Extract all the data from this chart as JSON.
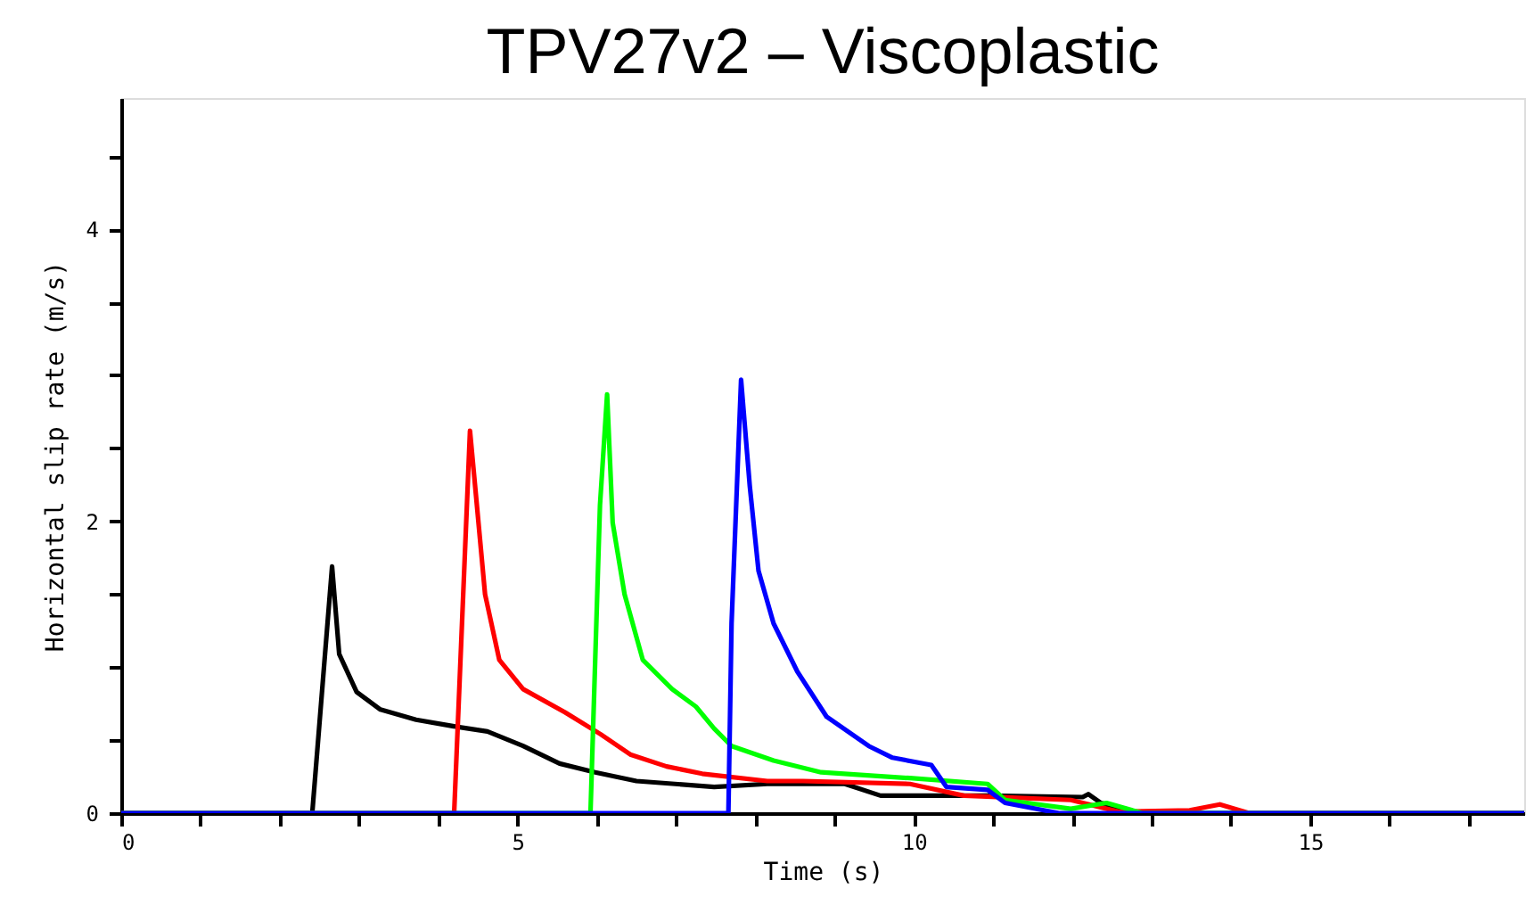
{
  "chart_data": {
    "type": "line",
    "title": "TPV27v2 – Viscoplastic",
    "xlabel": "Time (s)",
    "ylabel": "Horizontal slip rate (m/s)",
    "xlim": [
      0,
      17.7
    ],
    "ylim": [
      0,
      4.9
    ],
    "xticks": [
      0,
      {
        "value": 1,
        "label": null
      },
      {
        "value": 2,
        "label": null
      },
      {
        "value": 3,
        "label": null
      },
      {
        "value": 4,
        "label": null
      },
      5,
      {
        "value": 6,
        "label": null
      },
      {
        "value": 7,
        "label": null
      },
      {
        "value": 8,
        "label": null
      },
      {
        "value": 9,
        "label": null
      },
      10,
      {
        "value": 11,
        "label": null
      },
      {
        "value": 12,
        "label": null
      },
      {
        "value": 13,
        "label": null
      },
      {
        "value": 14,
        "label": null
      },
      15,
      {
        "value": 16,
        "label": null
      },
      {
        "value": 17,
        "label": null
      }
    ],
    "yticks": [
      0,
      {
        "value": 0.5,
        "label": null
      },
      {
        "value": 1,
        "label": null
      },
      {
        "value": 1.5,
        "label": null
      },
      2,
      {
        "value": 2.5,
        "label": null
      },
      {
        "value": 3,
        "label": null
      },
      {
        "value": 3.5,
        "label": null
      },
      4,
      {
        "value": 4.5,
        "label": null
      }
    ],
    "grid": false,
    "legend": false,
    "marker": "none",
    "line_style": "solid",
    "series": [
      {
        "color": "#000000",
        "x": [
          0,
          2.41,
          2.66,
          2.75,
          2.97,
          3.27,
          3.72,
          4.25,
          4.62,
          5.07,
          5.53,
          5.98,
          6.5,
          7.48,
          8.15,
          9.13,
          9.58,
          10.93,
          12.13,
          12.2,
          12.36,
          12.73,
          13.0,
          17.7
        ],
        "values": [
          0,
          0,
          1.69,
          1.09,
          0.83,
          0.71,
          0.64,
          0.59,
          0.56,
          0.46,
          0.34,
          0.28,
          0.22,
          0.18,
          0.2,
          0.2,
          0.12,
          0.12,
          0.11,
          0.13,
          0.07,
          0.01,
          0,
          0
        ]
      },
      {
        "color": "#ff0000",
        "x": [
          0,
          4.2,
          4.4,
          4.48,
          4.59,
          4.77,
          5.07,
          5.6,
          6.05,
          6.43,
          6.88,
          7.33,
          7.48,
          8.15,
          8.6,
          9.95,
          10.63,
          11.98,
          12.58,
          13.48,
          13.86,
          14.23,
          17.7
        ],
        "values": [
          0,
          0,
          2.62,
          2.15,
          1.5,
          1.05,
          0.85,
          0.69,
          0.54,
          0.4,
          0.32,
          0.27,
          0.26,
          0.22,
          0.22,
          0.2,
          0.12,
          0.09,
          0.01,
          0.02,
          0.06,
          0,
          0
        ]
      },
      {
        "color": "#00ff00",
        "x": [
          0,
          5.92,
          6.04,
          6.13,
          6.2,
          6.35,
          6.58,
          6.95,
          7.25,
          7.48,
          7.7,
          8.23,
          8.83,
          9.95,
          10.93,
          11.15,
          11.98,
          12.43,
          12.88,
          17.7
        ],
        "values": [
          0,
          0,
          2.11,
          2.87,
          1.99,
          1.5,
          1.05,
          0.85,
          0.73,
          0.58,
          0.46,
          0.36,
          0.28,
          0.24,
          0.2,
          0.09,
          0.03,
          0.07,
          0,
          0
        ]
      },
      {
        "color": "#0000ff",
        "x": [
          0,
          7.66,
          7.7,
          7.82,
          7.93,
          8.04,
          8.23,
          8.53,
          8.9,
          9.43,
          9.73,
          10.22,
          10.41,
          10.93,
          11.15,
          11.83,
          17.7
        ],
        "values": [
          0,
          0,
          1.3,
          2.97,
          2.24,
          1.66,
          1.3,
          0.97,
          0.66,
          0.46,
          0.38,
          0.33,
          0.18,
          0.16,
          0.07,
          0,
          0
        ]
      }
    ]
  }
}
